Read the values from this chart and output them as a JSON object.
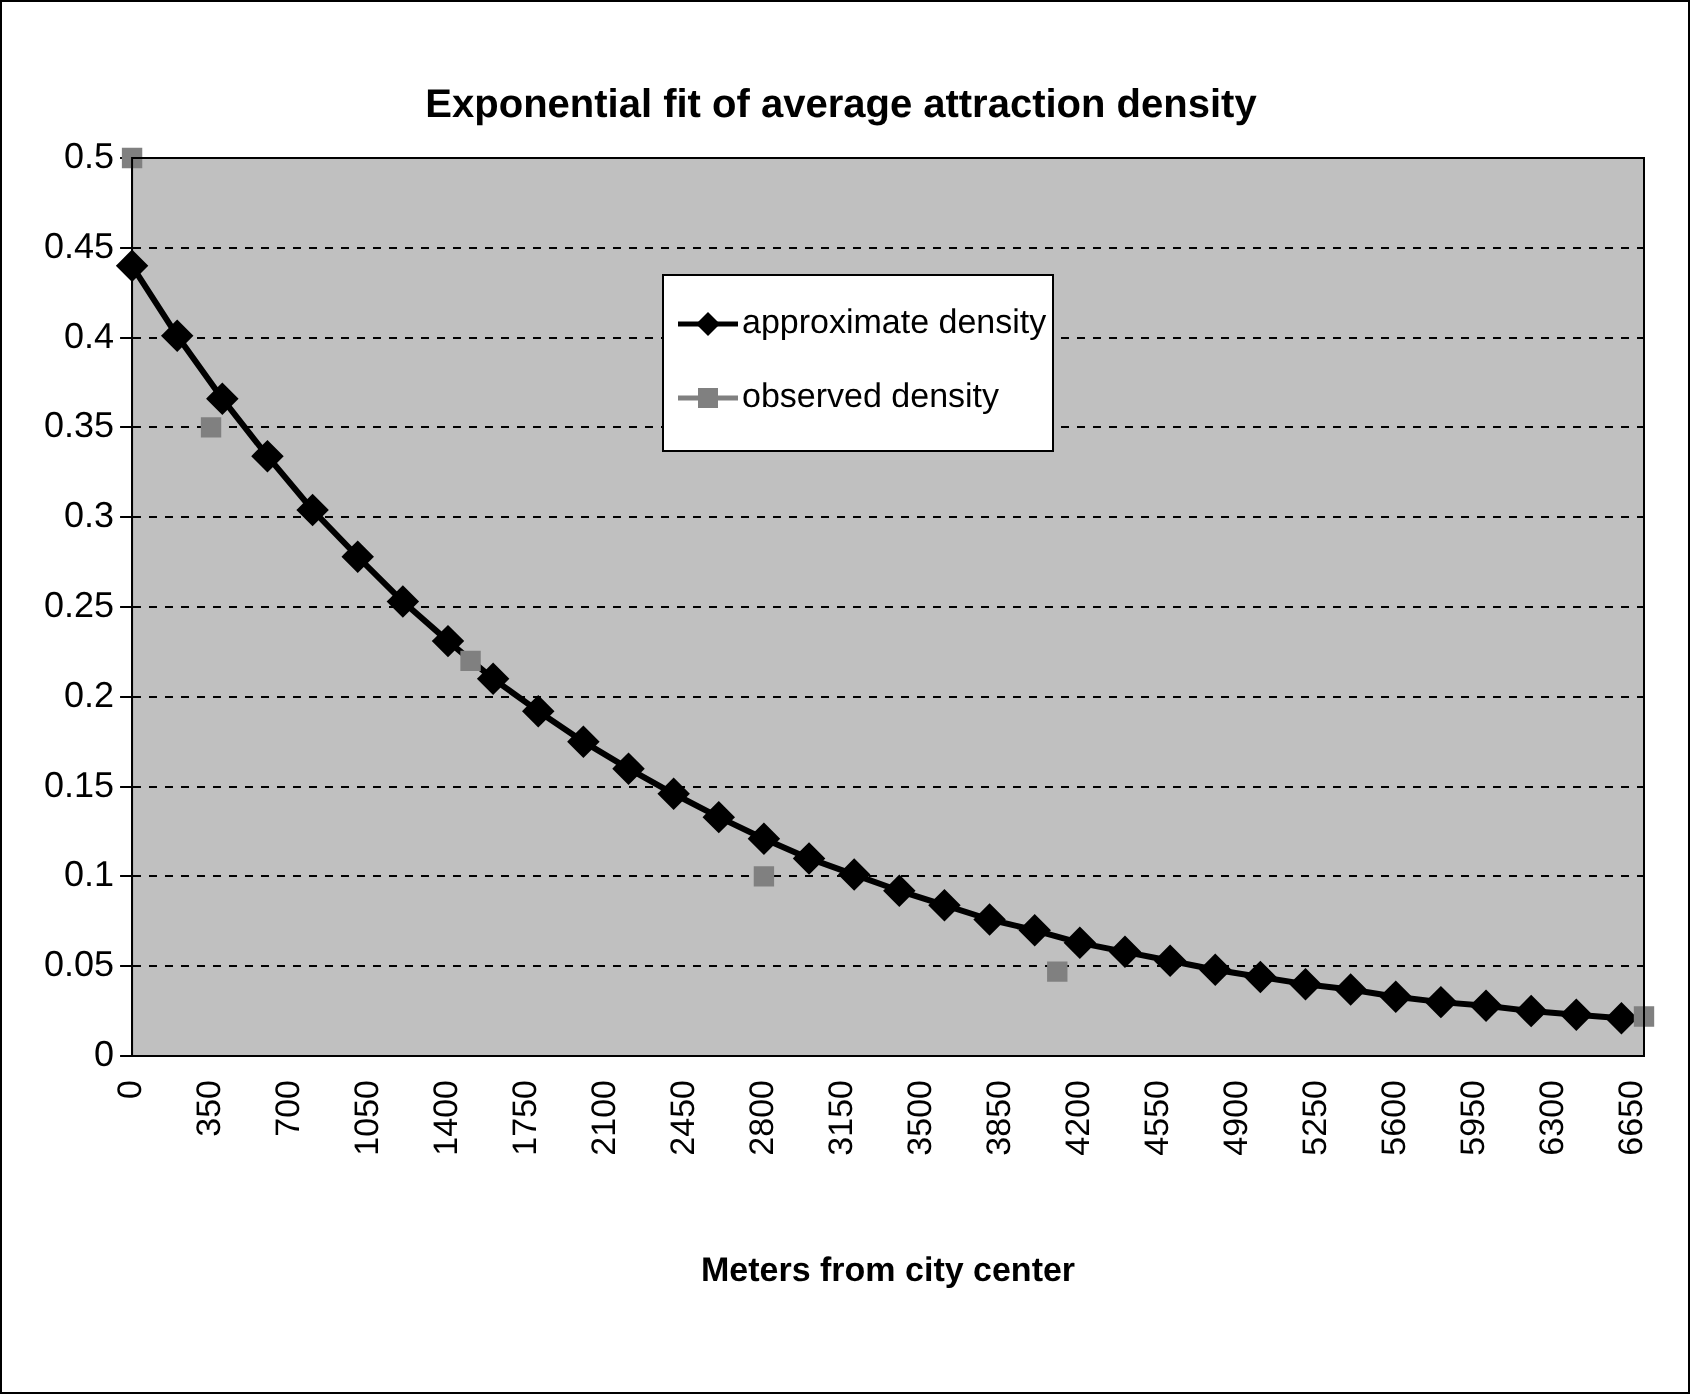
{
  "chart_data": {
    "type": "line",
    "title": "Exponential fit of average attraction density",
    "xlabel": "Meters from city center",
    "xlim": [
      0,
      6700
    ],
    "xticks": [
      0,
      350,
      700,
      1050,
      1400,
      1750,
      2100,
      2450,
      2800,
      3150,
      3500,
      3850,
      4200,
      4550,
      4900,
      5250,
      5600,
      5950,
      6300,
      6650
    ],
    "ylim": [
      0,
      0.5
    ],
    "yticks": [
      0,
      0.05,
      0.1,
      0.15,
      0.2,
      0.25,
      0.3,
      0.35,
      0.4,
      0.45,
      0.5
    ],
    "grid": "y",
    "legend": "top",
    "series": [
      {
        "name": "approximate density",
        "type": "line",
        "color": "#000000",
        "marker": "diamond",
        "line_style": "solid",
        "x": [
          0,
          200,
          400,
          600,
          800,
          1000,
          1200,
          1400,
          1600,
          1800,
          2000,
          2200,
          2400,
          2600,
          2800,
          3000,
          3200,
          3400,
          3600,
          3800,
          4000,
          4200,
          4400,
          4600,
          4800,
          5000,
          5200,
          5400,
          5600,
          5800,
          6000,
          6200,
          6400,
          6600
        ],
        "values": [
          0.44,
          0.401,
          0.366,
          0.334,
          0.304,
          0.278,
          0.253,
          0.231,
          0.21,
          0.192,
          0.175,
          0.16,
          0.146,
          0.133,
          0.121,
          0.11,
          0.101,
          0.092,
          0.084,
          0.076,
          0.07,
          0.063,
          0.058,
          0.053,
          0.048,
          0.044,
          0.04,
          0.037,
          0.033,
          0.03,
          0.028,
          0.025,
          0.023,
          0.021
        ]
      },
      {
        "name": "observed density",
        "type": "scatter",
        "color": "#808080",
        "marker": "square",
        "x": [
          0,
          350,
          1500,
          2800,
          4100,
          6700
        ],
        "values": [
          0.5,
          0.35,
          0.22,
          0.1,
          0.047,
          0.022
        ]
      }
    ]
  }
}
